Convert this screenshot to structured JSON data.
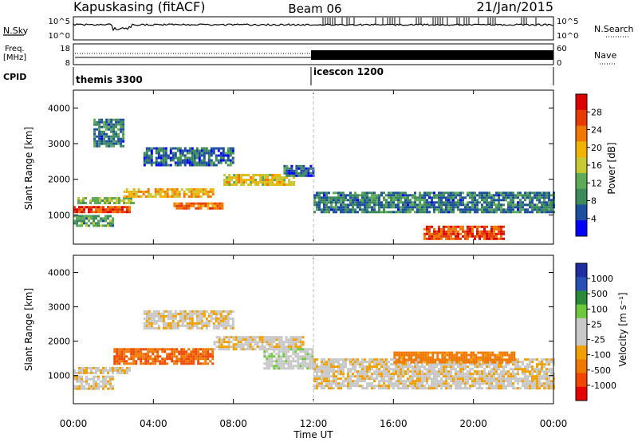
{
  "header": {
    "station": "Kapuskasing (fitACF)",
    "beam": "Beam 06",
    "date": "21/Jan/2015"
  },
  "noise_panel": {
    "left_label": "N.Sky",
    "right_label": "N.Search",
    "left_ticks": [
      "10^5",
      "10^0"
    ],
    "right_ticks": [
      "10^5",
      "10^0"
    ]
  },
  "freq_panel": {
    "left_label_1": "Freq.",
    "left_label_2": "[MHz]",
    "right_label": "Nave",
    "left_ticks": [
      "18",
      "8"
    ],
    "right_ticks": [
      "60",
      "0"
    ]
  },
  "cpid_panel": {
    "label": "CPID",
    "modes": [
      {
        "name": "themis 3300",
        "start_hour": 0,
        "end_hour": 12
      },
      {
        "name": "icescon 1200",
        "start_hour": 12,
        "end_hour": 24
      }
    ]
  },
  "x_axis": {
    "label": "Time UT",
    "ticks": [
      "00:00",
      "04:00",
      "08:00",
      "12:00",
      "16:00",
      "20:00",
      "00:00"
    ],
    "range_hours": [
      0,
      24
    ]
  },
  "power_panel": {
    "ylabel": "Slant Range [km]",
    "yticks": [
      "4000",
      "3000",
      "2000",
      "1000"
    ],
    "colorbar_label": "Power [dB]",
    "colorbar_ticks": [
      "28",
      "24",
      "20",
      "16",
      "12",
      "8",
      "4"
    ]
  },
  "velocity_panel": {
    "ylabel": "Slant Range [km]",
    "yticks": [
      "4000",
      "3000",
      "2000",
      "1000"
    ],
    "colorbar_label": "Velocity [m s⁻¹]",
    "colorbar_ticks": [
      "1000",
      "500",
      "100",
      "25",
      "-25",
      "-100",
      "-500",
      "-1000"
    ]
  },
  "colors": {
    "power_scale": [
      "#0000ff",
      "#1d4f9e",
      "#3d8a5a",
      "#5faa5a",
      "#c8c832",
      "#f0b400",
      "#f07800",
      "#e63c00",
      "#dc0000"
    ],
    "velocity_scale": [
      "#1e2ea0",
      "#2850b4",
      "#2a8a3a",
      "#6ec83c",
      "#c8c8c8",
      "#c8c8c8",
      "#f0a000",
      "#f07800",
      "#f04600",
      "#e60000"
    ]
  },
  "chart_data": {
    "type": "heatmap",
    "x_unit": "hours UT",
    "y_unit": "slant range km",
    "x_range": [
      0,
      24
    ],
    "y_range": [
      180,
      4500
    ],
    "power_bands": [
      {
        "t0": 0.0,
        "t1": 2.8,
        "r0": 1050,
        "r1": 1250,
        "value_db": 26
      },
      {
        "t0": 0.2,
        "t1": 3.0,
        "r0": 1300,
        "r1": 1500,
        "value_db": 14
      },
      {
        "t0": 0.0,
        "t1": 2.0,
        "r0": 700,
        "r1": 1000,
        "value_db": 12
      },
      {
        "t0": 1.0,
        "t1": 2.5,
        "r0": 2900,
        "r1": 3700,
        "value_db": 9
      },
      {
        "t0": 2.5,
        "t1": 7.0,
        "r0": 1500,
        "r1": 1750,
        "value_db": 20
      },
      {
        "t0": 5.0,
        "t1": 7.5,
        "r0": 1150,
        "r1": 1350,
        "value_db": 24
      },
      {
        "t0": 3.5,
        "t1": 8.0,
        "r0": 2400,
        "r1": 2900,
        "value_db": 8
      },
      {
        "t0": 7.5,
        "t1": 11.0,
        "r0": 1850,
        "r1": 2150,
        "value_db": 18
      },
      {
        "t0": 10.5,
        "t1": 12.0,
        "r0": 2100,
        "r1": 2400,
        "value_db": 8
      },
      {
        "t0": 12.0,
        "t1": 24.0,
        "r0": 1050,
        "r1": 1650,
        "value_db": 9
      },
      {
        "t0": 17.5,
        "t1": 21.5,
        "r0": 300,
        "r1": 700,
        "value_db": 26
      }
    ],
    "velocity_bands": [
      {
        "t0": 0.0,
        "t1": 2.8,
        "r0": 1050,
        "r1": 1250,
        "value_ms": 0
      },
      {
        "t0": 0.0,
        "t1": 2.0,
        "r0": 600,
        "r1": 1000,
        "value_ms": 0
      },
      {
        "t0": 2.0,
        "t1": 7.0,
        "r0": 1350,
        "r1": 1800,
        "value_ms": -300
      },
      {
        "t0": 3.5,
        "t1": 8.0,
        "r0": 2400,
        "r1": 2900,
        "value_ms": 0
      },
      {
        "t0": 7.0,
        "t1": 11.5,
        "r0": 1750,
        "r1": 2150,
        "value_ms": 0
      },
      {
        "t0": 9.5,
        "t1": 12.0,
        "r0": 1200,
        "r1": 1800,
        "value_ms": 60
      },
      {
        "t0": 12.0,
        "t1": 24.0,
        "r0": 600,
        "r1": 1500,
        "value_ms": 0
      },
      {
        "t0": 16.0,
        "t1": 22.0,
        "r0": 1400,
        "r1": 1700,
        "value_ms": -150
      }
    ]
  }
}
